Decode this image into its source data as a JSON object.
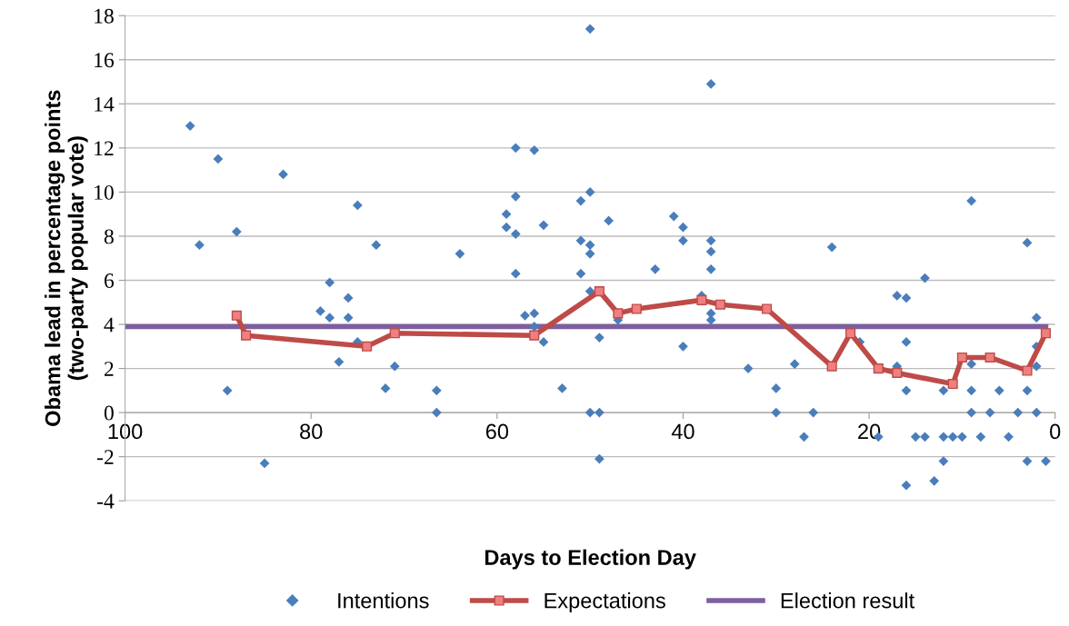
{
  "chart_data": {
    "type": "scatter",
    "xlabel": "Days to Election Day",
    "ylabel": "Obama lead in percentage points\n(two-party popular vote)",
    "xlim": [
      100,
      0
    ],
    "xticks": [
      100,
      80,
      60,
      40,
      20,
      0
    ],
    "ylim": [
      -4,
      18
    ],
    "yticks": [
      -4,
      -2,
      0,
      2,
      4,
      6,
      8,
      10,
      12,
      14,
      16,
      18
    ],
    "grid": "y",
    "legend": "bottom",
    "series": [
      {
        "name": "Intentions",
        "marker": "diamond",
        "color": "#4a7ebb",
        "x": [
          93,
          92,
          90,
          89,
          88,
          85,
          83,
          79,
          78,
          78,
          77,
          76,
          76,
          75,
          75,
          73,
          72,
          71,
          66.5,
          66.5,
          64,
          59,
          59,
          58,
          58,
          58,
          58,
          57,
          56,
          56,
          56,
          55,
          55,
          53,
          51,
          51,
          51,
          50,
          50,
          50,
          50,
          50,
          50,
          49,
          49,
          49,
          48,
          47,
          43,
          41,
          40,
          40,
          40,
          38,
          37,
          37,
          37,
          37,
          37,
          37,
          33,
          30,
          30,
          28,
          27,
          26,
          24,
          21,
          19,
          17,
          17,
          16,
          16,
          16,
          16,
          15,
          14,
          14,
          13,
          12,
          12,
          12,
          11,
          10,
          9,
          9,
          9,
          9,
          8,
          7,
          6,
          5,
          4,
          3,
          3,
          3,
          2,
          2,
          2,
          2,
          1
        ],
        "values": [
          13.0,
          7.6,
          11.5,
          1.0,
          8.2,
          -2.3,
          10.8,
          4.6,
          5.9,
          4.3,
          2.3,
          5.2,
          4.3,
          9.4,
          3.2,
          7.6,
          1.1,
          2.1,
          1.0,
          0,
          7.2,
          9.0,
          8.4,
          12.0,
          9.8,
          8.1,
          6.3,
          4.4,
          11.9,
          4.5,
          3.9,
          8.5,
          3.2,
          1.1,
          9.6,
          7.8,
          6.3,
          17.4,
          10.0,
          7.6,
          7.2,
          5.5,
          0,
          0,
          -2.1,
          3.4,
          8.7,
          4.2,
          6.5,
          8.9,
          8.4,
          7.8,
          3.0,
          5.3,
          14.9,
          7.8,
          7.3,
          6.5,
          4.5,
          4.2,
          2.0,
          1.1,
          0,
          2.2,
          -1.1,
          0,
          7.5,
          3.2,
          -1.1,
          5.3,
          2.1,
          5.2,
          3.2,
          1.0,
          -3.3,
          -1.1,
          6.1,
          -1.1,
          -3.1,
          1.0,
          -1.1,
          -2.2,
          -1.1,
          -1.1,
          9.6,
          2.2,
          1.0,
          0,
          -1.1,
          0,
          1.0,
          -1.1,
          0,
          7.7,
          1.0,
          -2.2,
          4.3,
          3.0,
          2.1,
          0,
          -2.2
        ]
      },
      {
        "name": "Expectations",
        "type": "line",
        "marker": "square",
        "color": "#be4b48",
        "x": [
          88,
          87,
          74,
          71,
          56,
          49,
          47,
          45,
          38,
          36,
          31,
          24,
          22,
          19,
          17,
          11,
          10,
          7,
          3,
          1
        ],
        "values": [
          4.4,
          3.5,
          3.0,
          3.6,
          3.5,
          5.5,
          4.5,
          4.7,
          5.1,
          4.9,
          4.7,
          2.1,
          3.6,
          2.0,
          1.8,
          1.3,
          2.5,
          2.5,
          1.9,
          3.6
        ]
      },
      {
        "name": "Election result",
        "type": "line",
        "marker": "none",
        "color": "#7d5fa0",
        "x": [
          100,
          1
        ],
        "values": [
          3.9,
          3.9
        ]
      }
    ]
  }
}
